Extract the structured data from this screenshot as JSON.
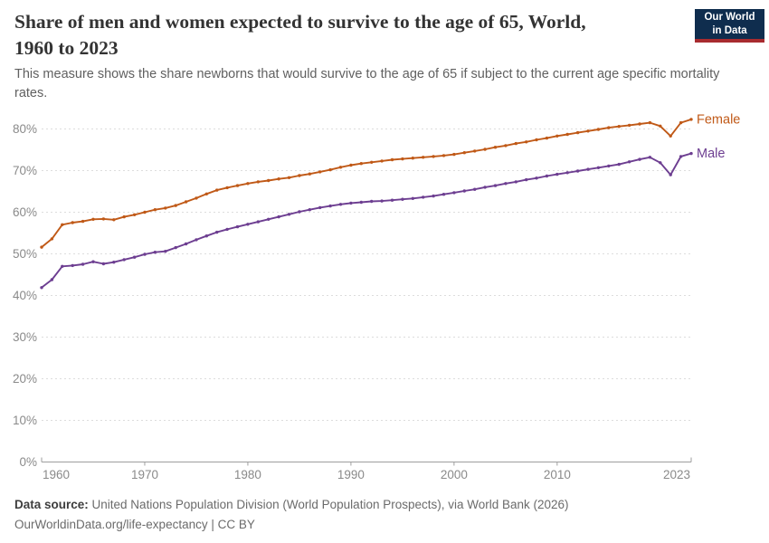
{
  "header": {
    "title_line1": "Share of men and women expected to survive to the age of 65, World,",
    "title_line2": "1960 to 2023",
    "subtitle": "This measure shows the share newborns that would survive to the age of 65 if subject to the current age specific mortality rates.",
    "logo": {
      "line1": "Our World",
      "line2": "in Data",
      "bg": "#0f2d4e",
      "bar": "#a82b2f"
    }
  },
  "footer": {
    "source_label": "Data source:",
    "source_text": " United Nations Population Division (World Population Prospects), via World Bank (2026)",
    "license_line": "OurWorldinData.org/life-expectancy | CC BY"
  },
  "chart_data": {
    "type": "line",
    "title": "Share of men and women expected to survive to the age of 65, World, 1960 to 2023",
    "x_start": 1960,
    "x_end": 2023,
    "xticks": [
      1960,
      1970,
      1980,
      1990,
      2000,
      2010,
      2023
    ],
    "xtick_labels": [
      "1960",
      "1970",
      "1980",
      "1990",
      "2000",
      "2010",
      "2023"
    ],
    "yticks": [
      0,
      10,
      20,
      30,
      40,
      50,
      60,
      70,
      80
    ],
    "ytick_labels": [
      "0%",
      "10%",
      "20%",
      "30%",
      "40%",
      "50%",
      "60%",
      "70%",
      "80%"
    ],
    "ylim": [
      0,
      85
    ],
    "grid": "dashed-horizontal",
    "legend_position": "line-end-labels",
    "series": [
      {
        "name": "Female",
        "color": "#c05917",
        "values": [
          51.6,
          53.6,
          57.0,
          57.5,
          57.8,
          58.3,
          58.4,
          58.2,
          58.9,
          59.4,
          60.0,
          60.6,
          61.0,
          61.6,
          62.5,
          63.4,
          64.4,
          65.3,
          65.9,
          66.4,
          66.9,
          67.3,
          67.6,
          68.0,
          68.3,
          68.8,
          69.2,
          69.7,
          70.2,
          70.8,
          71.3,
          71.7,
          72.0,
          72.3,
          72.6,
          72.8,
          73.0,
          73.2,
          73.4,
          73.6,
          73.9,
          74.3,
          74.7,
          75.1,
          75.6,
          76.0,
          76.5,
          76.9,
          77.4,
          77.8,
          78.3,
          78.7,
          79.1,
          79.5,
          79.9,
          80.3,
          80.6,
          80.9,
          81.2,
          81.5,
          80.7,
          78.3,
          81.5,
          82.3
        ]
      },
      {
        "name": "Male",
        "color": "#6d3e91",
        "values": [
          41.9,
          43.8,
          47.0,
          47.2,
          47.5,
          48.1,
          47.6,
          48.0,
          48.6,
          49.2,
          49.9,
          50.4,
          50.6,
          51.5,
          52.4,
          53.4,
          54.3,
          55.2,
          55.9,
          56.5,
          57.1,
          57.7,
          58.3,
          58.9,
          59.5,
          60.1,
          60.6,
          61.1,
          61.5,
          61.9,
          62.2,
          62.4,
          62.6,
          62.7,
          62.9,
          63.1,
          63.3,
          63.6,
          63.9,
          64.3,
          64.7,
          65.1,
          65.5,
          66.0,
          66.4,
          66.9,
          67.3,
          67.8,
          68.2,
          68.7,
          69.1,
          69.5,
          69.9,
          70.3,
          70.7,
          71.1,
          71.5,
          72.1,
          72.7,
          73.2,
          71.9,
          69.0,
          73.4,
          74.1
        ]
      }
    ]
  }
}
